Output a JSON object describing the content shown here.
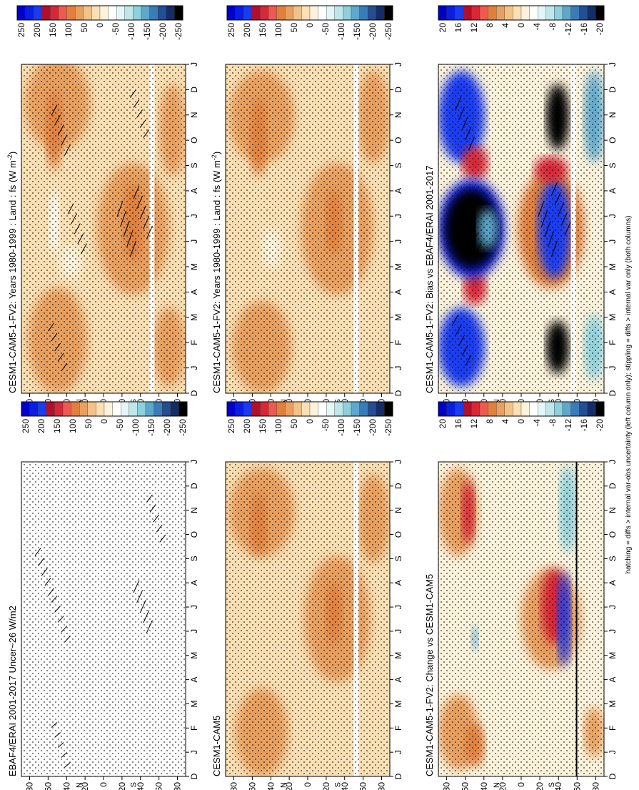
{
  "figure": {
    "footnote": "hatching = diffs > internal var-obs uncertainty (left column only); stippling = diffs > internal var only (both columns)"
  },
  "colors": {
    "diverging_large": [
      "#0000cc",
      "#0a1ee0",
      "#1a3cf0",
      "#b0102a",
      "#d82838",
      "#ef5a50",
      "#e0803c",
      "#e8a060",
      "#f2c288",
      "#fae0b4",
      "#fdf3dc",
      "#ffffff",
      "#e4f6f7",
      "#bfe7ea",
      "#8ed0dc",
      "#5ea8cc",
      "#3a7cb8",
      "#234f92",
      "#152d66",
      "#000000"
    ],
    "diverging_small": [
      "#0000cc",
      "#0a1ee0",
      "#1a3cf0",
      "#b0102a",
      "#d82838",
      "#ef5a50",
      "#e0803c",
      "#e8a060",
      "#f2c288",
      "#fae0b4",
      "#fdf3dc",
      "#ffffff",
      "#e4f6f7",
      "#bfe7ea",
      "#8ed0dc",
      "#5ea8cc",
      "#3a7cb8",
      "#234f92",
      "#152d66",
      "#000000"
    ]
  },
  "chart_data": [
    {
      "id": "p1",
      "type": "heatmap",
      "title": "CESM1-CAM5-1-FV2: Years 1980-1999 : Land : fs (W m",
      "title_sup": "-2",
      "title_end": ")",
      "x_ticks": [
        "D",
        "J",
        "F",
        "M",
        "A",
        "M",
        "J",
        "J",
        "A",
        "S",
        "O",
        "N",
        "D",
        "J"
      ],
      "y_ticks": [
        "80",
        "60",
        "40",
        "20",
        "0",
        "20",
        "40",
        "60",
        "80"
      ],
      "y_hemi": [
        "N",
        "S"
      ],
      "colorbar_labels": [
        "250",
        "200",
        "150",
        "100",
        "50",
        "0",
        "-50",
        "-100",
        "-150",
        "-200",
        "-250"
      ],
      "colorbar": "diverging_large",
      "stippling": true,
      "hatching": true
    },
    {
      "id": "p2",
      "type": "heatmap",
      "title": "CESM1-CAM5-1-FV2: Years 1980-1999 : Land : fs (W m",
      "title_sup": "-2",
      "title_end": ")",
      "x_ticks": [
        "D",
        "J",
        "F",
        "M",
        "A",
        "M",
        "J",
        "J",
        "A",
        "S",
        "O",
        "N",
        "D",
        "J"
      ],
      "y_ticks": [
        "80",
        "60",
        "40",
        "20",
        "0",
        "20",
        "40",
        "60",
        "80"
      ],
      "y_hemi": [
        "N",
        "S"
      ],
      "colorbar_labels": [
        "250",
        "200",
        "150",
        "100",
        "50",
        "0",
        "-50",
        "-100",
        "-150",
        "-200",
        "-250"
      ],
      "colorbar": "diverging_large",
      "stippling": true,
      "hatching": false
    },
    {
      "id": "p3",
      "type": "heatmap",
      "title": "EBAF4/ERAI 2001-2017 Uncer~26 W/m2",
      "x_ticks": [
        "D",
        "J",
        "F",
        "M",
        "A",
        "M",
        "J",
        "J",
        "A",
        "S",
        "O",
        "N",
        "D",
        "J"
      ],
      "y_ticks": [
        "80",
        "60",
        "40",
        "20",
        "0",
        "20",
        "40",
        "60",
        "80"
      ],
      "y_hemi": [
        "N",
        "S"
      ],
      "colorbar_labels": [
        "250",
        "200",
        "150",
        "100",
        "50",
        "0",
        "-50",
        "-100",
        "-150",
        "-200",
        "-250"
      ],
      "colorbar": "diverging_large",
      "stippling": true,
      "hatching": true
    },
    {
      "id": "p4",
      "type": "heatmap",
      "title": "CESM1-CAM5",
      "x_ticks": [
        "D",
        "J",
        "F",
        "M",
        "A",
        "M",
        "J",
        "J",
        "A",
        "S",
        "O",
        "N",
        "D",
        "J"
      ],
      "y_ticks": [
        "80",
        "60",
        "40",
        "20",
        "0",
        "20",
        "40",
        "60",
        "80"
      ],
      "y_hemi": [
        "N",
        "S"
      ],
      "colorbar_labels": [
        "250",
        "200",
        "150",
        "100",
        "50",
        "0",
        "-50",
        "-100",
        "-150",
        "-200",
        "-250"
      ],
      "colorbar": "diverging_large",
      "stippling": true,
      "hatching": false
    },
    {
      "id": "p5",
      "type": "heatmap",
      "title": "CESM1-CAM5-1-FV2: Bias vs EBAF4/ERAI 2001-2017",
      "x_ticks": [
        "D",
        "J",
        "F",
        "M",
        "A",
        "M",
        "J",
        "J",
        "A",
        "S",
        "O",
        "N",
        "D",
        "J"
      ],
      "y_ticks": [
        "80",
        "60",
        "40",
        "20",
        "0",
        "20",
        "40",
        "60",
        "80"
      ],
      "y_hemi": [
        "N",
        "S"
      ],
      "colorbar_labels": [
        "20",
        "16",
        "12",
        "8",
        "4",
        "0",
        "-4",
        "-8",
        "-12",
        "-16",
        "-20"
      ],
      "colorbar": "diverging_small",
      "stippling": true,
      "hatching": true
    },
    {
      "id": "p6",
      "type": "heatmap",
      "title": "CESM1-CAM5-1-FV2: Change vs CESM1-CAM5",
      "x_ticks": [
        "D",
        "J",
        "F",
        "M",
        "A",
        "M",
        "J",
        "J",
        "A",
        "S",
        "O",
        "N",
        "D",
        "J"
      ],
      "y_ticks": [
        "80",
        "60",
        "40",
        "20",
        "0",
        "20",
        "40",
        "60",
        "80"
      ],
      "y_hemi": [
        "N",
        "S"
      ],
      "colorbar_labels": [
        "20",
        "16",
        "12",
        "8",
        "4",
        "0",
        "-4",
        "-8",
        "-12",
        "-16",
        "-20"
      ],
      "colorbar": "diverging_small",
      "stippling": true,
      "hatching": false
    }
  ]
}
